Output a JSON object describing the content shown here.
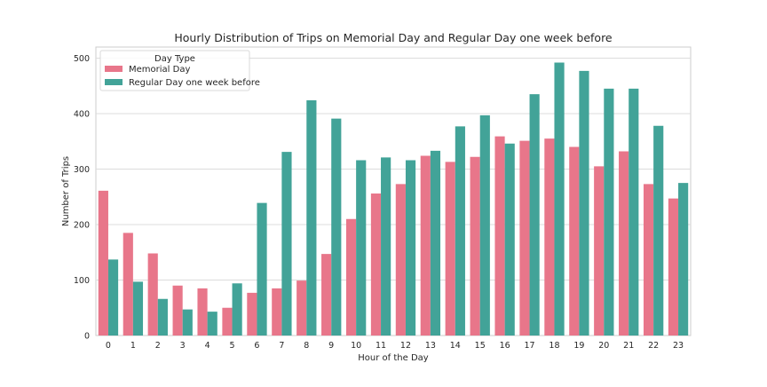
{
  "chart_data": {
    "type": "bar",
    "title": "Hourly Distribution of Trips on Memorial Day and Regular Day one week before",
    "xlabel": "Hour of the Day",
    "ylabel": "Number of Trips",
    "ylim": [
      0,
      520
    ],
    "yticks": [
      0,
      100,
      200,
      300,
      400,
      500
    ],
    "grid": "horizontal",
    "legend": {
      "title": "Day Type",
      "placement": "top-left"
    },
    "categories": [
      "0",
      "1",
      "2",
      "3",
      "4",
      "5",
      "6",
      "7",
      "8",
      "9",
      "10",
      "11",
      "12",
      "13",
      "14",
      "15",
      "16",
      "17",
      "18",
      "19",
      "20",
      "21",
      "22",
      "23"
    ],
    "series": [
      {
        "name": "Memorial Day",
        "color": "#e8768a",
        "values": [
          261,
          185,
          148,
          90,
          85,
          50,
          77,
          85,
          99,
          147,
          210,
          256,
          273,
          324,
          313,
          322,
          359,
          351,
          355,
          340,
          305,
          332,
          273,
          247
        ]
      },
      {
        "name": "Regular Day one week before",
        "color": "#42a398",
        "values": [
          137,
          97,
          66,
          47,
          43,
          94,
          239,
          331,
          424,
          391,
          316,
          321,
          316,
          333,
          377,
          397,
          346,
          435,
          492,
          477,
          445,
          445,
          378,
          275
        ]
      }
    ]
  }
}
